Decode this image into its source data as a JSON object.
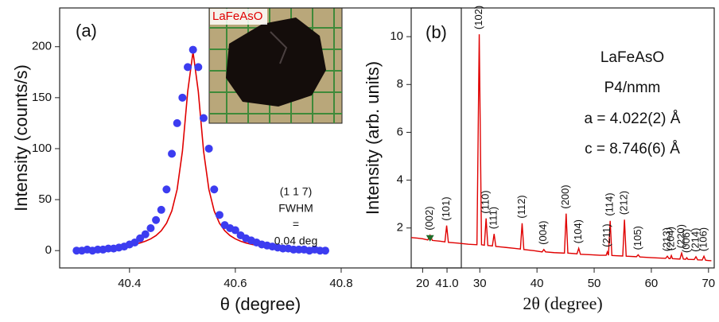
{
  "chart_data": [
    {
      "type": "scatter",
      "x_label": "θ (degree)",
      "y_label": "Intensity (counts/s)",
      "x": [
        40.3,
        40.31,
        40.32,
        40.33,
        40.34,
        40.35,
        40.36,
        40.37,
        40.38,
        40.39,
        40.4,
        40.41,
        40.42,
        40.43,
        40.44,
        40.45,
        40.46,
        40.47,
        40.48,
        40.49,
        40.5,
        40.51,
        40.52,
        40.53,
        40.54,
        40.55,
        40.56,
        40.57,
        40.58,
        40.59,
        40.6,
        40.61,
        40.62,
        40.63,
        40.64,
        40.65,
        40.66,
        40.67,
        40.68,
        40.69,
        40.7,
        40.71,
        40.72,
        40.73,
        40.74,
        40.75,
        40.76,
        40.77
      ],
      "series": [
        {
          "style": "markers",
          "color": "#3c3cf0",
          "values": [
            0,
            0,
            1,
            0,
            1,
            1,
            2,
            2,
            3,
            4,
            6,
            8,
            12,
            16,
            22,
            30,
            40,
            60,
            95,
            125,
            150,
            180,
            197,
            180,
            130,
            100,
            60,
            35,
            25,
            22,
            20,
            15,
            12,
            10,
            8,
            6,
            5,
            4,
            3,
            2,
            2,
            1,
            1,
            1,
            0,
            1,
            0,
            0
          ]
        },
        {
          "style": "line",
          "color": "#e00000",
          "values": [
            1.6,
            1.75,
            1.93,
            2.14,
            2.38,
            2.66,
            3.0,
            3.4,
            3.9,
            4.5,
            5.3,
            6.2,
            7.5,
            9.2,
            11.5,
            14.7,
            19.5,
            26.9,
            39,
            60,
            97.5,
            156,
            195,
            156,
            97.5,
            60,
            39,
            26.9,
            19.5,
            14.7,
            11.5,
            9.2,
            7.5,
            6.2,
            5.3,
            4.5,
            3.9,
            3.4,
            3.0,
            2.66,
            2.38,
            2.14,
            1.93,
            1.75,
            1.6,
            1.46,
            1.34,
            1.24
          ]
        }
      ],
      "xlim": [
        40.268,
        41.027
      ],
      "ylim": [
        -17,
        238
      ],
      "xticks": [
        40.4,
        40.6,
        40.8,
        {
          "value": 41,
          "label": "41.0"
        }
      ],
      "yticks": [
        0,
        50,
        100,
        150,
        200
      ],
      "annotations": [
        "(a)",
        "(1 1 7)",
        "FWHM",
        "=",
        "0.04 deg"
      ],
      "inset_label": "LaFeAsO"
    },
    {
      "type": "line",
      "x_label": "2θ (degree)",
      "y_label": "Intensity (arb. units)",
      "x": [
        18,
        19,
        20,
        20.9,
        21.3,
        21.7,
        23,
        23.9,
        24.2,
        24.5,
        26,
        28,
        29.5,
        29.9,
        30.3,
        30.8,
        31.1,
        31.4,
        32.2,
        32.5,
        32.8,
        34,
        36,
        37.1,
        37.4,
        37.7,
        39.5,
        40.9,
        41.2,
        41.5,
        43,
        44.8,
        45.1,
        45.4,
        47,
        47.3,
        47.6,
        49.5,
        51,
        52.1,
        52.3,
        52.5,
        52.8,
        53.1,
        54,
        55.0,
        55.3,
        55.6,
        57.4,
        57.7,
        58,
        60,
        62.5,
        62.8,
        63.1,
        63.3,
        63.5,
        63.7,
        65,
        65.3,
        65.6,
        66,
        66.2,
        66.4,
        67.5,
        67.8,
        68.1,
        68.9,
        69.2,
        69.5,
        70.5
      ],
      "series": [
        {
          "color": "#e00000",
          "values": [
            1.6,
            1.58,
            1.55,
            1.5,
            1.7,
            1.48,
            1.45,
            1.42,
            2.1,
            1.4,
            1.37,
            1.32,
            1.3,
            10.1,
            1.3,
            1.28,
            2.4,
            1.27,
            1.25,
            1.75,
            1.23,
            1.2,
            1.15,
            1.12,
            2.2,
            1.1,
            1.05,
            1.0,
            1.1,
            1.0,
            0.97,
            0.95,
            2.6,
            0.95,
            0.92,
            1.15,
            0.9,
            0.88,
            0.86,
            0.86,
            1.0,
            0.86,
            2.3,
            0.85,
            0.84,
            0.83,
            2.35,
            0.82,
            0.8,
            0.88,
            0.79,
            0.76,
            0.73,
            0.82,
            0.72,
            0.72,
            0.85,
            0.72,
            0.7,
            0.95,
            0.7,
            0.69,
            0.76,
            0.69,
            0.68,
            0.8,
            0.67,
            0.66,
            0.82,
            0.65,
            0.63
          ]
        }
      ],
      "peaks": [
        {
          "label": "(002)",
          "x": 21.3
        },
        {
          "label": "(101)",
          "x": 24.2
        },
        {
          "label": "(102)",
          "x": 29.9
        },
        {
          "label": "(110)",
          "x": 31.1
        },
        {
          "label": "(111)",
          "x": 32.5
        },
        {
          "label": "(112)",
          "x": 37.4
        },
        {
          "label": "(004)",
          "x": 41.2
        },
        {
          "label": "(200)",
          "x": 45.1
        },
        {
          "label": "(104)",
          "x": 47.3
        },
        {
          "label": "(211)",
          "x": 52.3
        },
        {
          "label": "(114)",
          "x": 52.8
        },
        {
          "label": "(212)",
          "x": 55.3
        },
        {
          "label": "(105)",
          "x": 57.7
        },
        {
          "label": "(213)",
          "x": 62.8
        },
        {
          "label": "(204)",
          "x": 63.5
        },
        {
          "label": "(220)",
          "x": 65.3
        },
        {
          "label": "(006)",
          "x": 66.2
        },
        {
          "label": "(214)",
          "x": 67.8
        },
        {
          "label": "(106)",
          "x": 69.2
        }
      ],
      "marker_color": "#1f6b2a",
      "xlim": [
        18,
        71
      ],
      "ylim": [
        0.33,
        11.2
      ],
      "xticks": [
        20,
        30,
        40,
        50,
        60,
        70
      ],
      "yticks": [
        2,
        4,
        6,
        8,
        10
      ],
      "annotations": [
        "(b)",
        "LaFeAsO",
        "P4/nmm",
        "a = 4.022(2) Å",
        "c = 8.746(6) Å"
      ]
    }
  ]
}
